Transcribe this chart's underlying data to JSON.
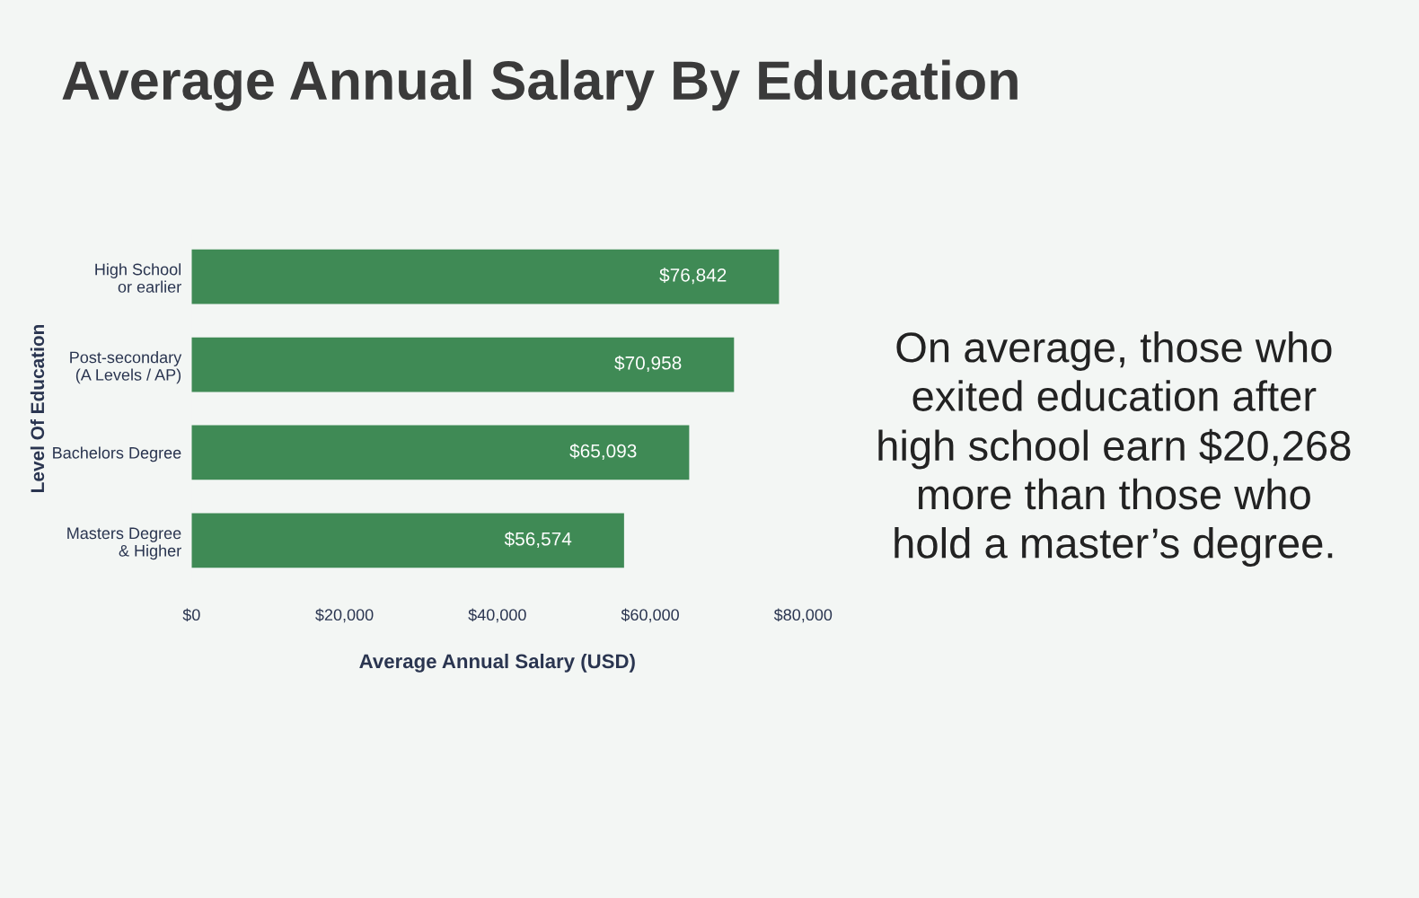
{
  "chart_data": {
    "type": "bar",
    "orientation": "horizontal",
    "title": "Average Annual Salary By Education",
    "categories": [
      "High School\nor earlier",
      "Post-secondary\n(A Levels / AP)",
      "Bachelors Degree",
      "Masters Degree\n& Higher"
    ],
    "values": [
      76842,
      70958,
      65093,
      56574
    ],
    "value_labels": [
      "$76,842",
      "$70,958",
      "$65,093",
      "$56,574"
    ],
    "color": "#3f8a55",
    "xlim": [
      0,
      80000
    ],
    "xticks": [
      {
        "value": 0,
        "label": "$0"
      },
      {
        "value": 20000,
        "label": "$20,000"
      },
      {
        "value": 40000,
        "label": "$40,000"
      },
      {
        "value": 60000,
        "label": "$60,000"
      },
      {
        "value": 80000,
        "label": "$80,000"
      }
    ],
    "xlabel": "Average Annual Salary (USD)",
    "ylabel": "Level Of Education",
    "grid": false,
    "legend": false,
    "annotations": [
      "On average, those who\nexited education after\nhigh school earn $20,268\nmore than those who\nhold a master’s degree."
    ]
  }
}
